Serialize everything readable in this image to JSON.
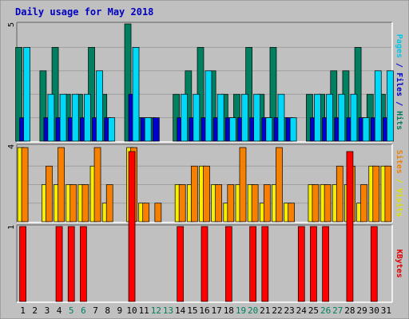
{
  "chart_data": {
    "title": "Daily usage for May 2018",
    "type": "bar",
    "categories": [
      "1",
      "2",
      "3",
      "4",
      "5",
      "6",
      "7",
      "8",
      "9",
      "10",
      "11",
      "12",
      "13",
      "14",
      "15",
      "16",
      "17",
      "18",
      "19",
      "20",
      "21",
      "22",
      "23",
      "24",
      "25",
      "26",
      "27",
      "28",
      "29",
      "30",
      "31"
    ],
    "weekend_days": [
      "5",
      "6",
      "12",
      "13",
      "19",
      "20",
      "26",
      "27"
    ],
    "panels": [
      {
        "name": "hits-files-pages",
        "ymax": 5,
        "ymax_label": "5",
        "axis_label": [
          {
            "text": "Pages",
            "color": "#00c8e8"
          },
          {
            "text": " / ",
            "color": "#0000d0"
          },
          {
            "text": "Files",
            "color": "#0000d0"
          },
          {
            "text": " / ",
            "color": "#0000d0"
          },
          {
            "text": "Hits",
            "color": "#008060"
          }
        ],
        "series": [
          {
            "name": "Hits",
            "color": "#008060",
            "values": [
              4,
              0,
              3,
              4,
              2,
              2,
              4,
              2,
              0,
              5,
              1,
              1,
              0,
              2,
              3,
              4,
              3,
              2,
              2,
              4,
              2,
              4,
              1,
              0,
              2,
              2,
              3,
              3,
              4,
              2,
              2
            ]
          },
          {
            "name": "Files",
            "color": "#0000d0",
            "values": [
              1,
              0,
              1,
              1,
              1,
              1,
              1,
              1,
              0,
              2,
              1,
              1,
              0,
              1,
              1,
              1,
              1,
              1,
              1,
              1,
              1,
              1,
              1,
              0,
              1,
              1,
              1,
              1,
              1,
              1,
              1
            ]
          },
          {
            "name": "Pages",
            "color": "#00d8f8",
            "values": [
              4,
              0,
              2,
              2,
              2,
              2,
              3,
              1,
              0,
              4,
              1,
              0,
              0,
              2,
              2,
              3,
              2,
              1,
              2,
              2,
              1,
              2,
              1,
              0,
              2,
              2,
              2,
              2,
              1,
              3,
              3
            ]
          }
        ]
      },
      {
        "name": "visits-sites",
        "ymax": 4,
        "ymax_label": "4",
        "axis_label": [
          {
            "text": "Sites",
            "color": "#f08000"
          },
          {
            "text": " / ",
            "color": "#e0e000"
          },
          {
            "text": "Visits",
            "color": "#e0e000"
          }
        ],
        "series": [
          {
            "name": "Visits",
            "color": "#f8f000",
            "values": [
              4,
              0,
              2,
              2,
              2,
              2,
              3,
              1,
              0,
              4,
              1,
              0,
              0,
              2,
              2,
              3,
              2,
              1,
              2,
              2,
              1,
              2,
              1,
              0,
              2,
              2,
              2,
              2,
              1,
              3,
              3
            ]
          },
          {
            "name": "Sites",
            "color": "#f88000",
            "values": [
              4,
              0,
              3,
              4,
              2,
              2,
              4,
              2,
              0,
              4,
              1,
              1,
              0,
              2,
              3,
              3,
              2,
              2,
              4,
              2,
              2,
              4,
              1,
              0,
              2,
              2,
              3,
              3,
              2,
              3,
              3
            ]
          }
        ]
      },
      {
        "name": "kbytes",
        "ymax": 1,
        "ymax_label": "1",
        "axis_label": [
          {
            "text": "KBytes",
            "color": "#e00000"
          }
        ],
        "series": [
          {
            "name": "KBytes",
            "color": "#ff0000",
            "values": [
              1,
              0,
              0,
              1,
              1,
              1,
              0,
              0,
              0,
              2,
              0,
              0,
              0,
              1,
              0,
              1,
              0,
              1,
              0,
              1,
              1,
              0,
              0,
              1,
              1,
              1,
              0,
              2,
              0,
              1,
              0
            ]
          }
        ]
      }
    ]
  }
}
